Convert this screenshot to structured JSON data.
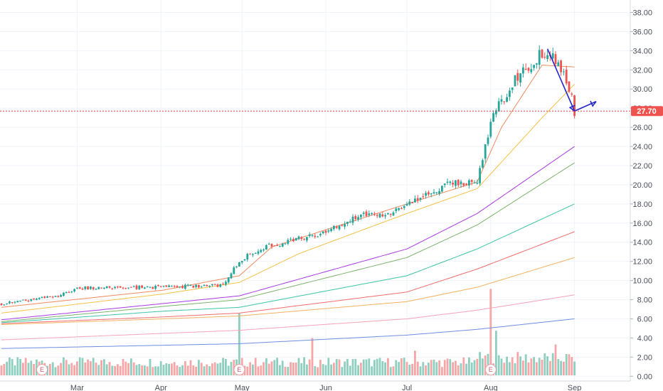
{
  "chart_data": {
    "type": "candlestick",
    "title": "",
    "xlabel": "",
    "ylabel": "",
    "ylim": [
      -0.5,
      39.3
    ],
    "y_ticks": [
      "0.00",
      "2.00",
      "4.00",
      "6.00",
      "8.00",
      "10.00",
      "12.00",
      "14.00",
      "16.00",
      "18.00",
      "20.00",
      "22.00",
      "24.00",
      "26.00",
      "28.00",
      "30.00",
      "32.00",
      "34.00",
      "36.00",
      "38.00"
    ],
    "x_ticks": [
      {
        "label": "Mar",
        "day": 28
      },
      {
        "label": "Apr",
        "day": 59
      },
      {
        "label": "May",
        "day": 89
      },
      {
        "label": "Jun",
        "day": 120
      },
      {
        "label": "Jul",
        "day": 150
      },
      {
        "label": "Aug",
        "day": 181
      },
      {
        "label": "Sep",
        "day": 212
      }
    ],
    "last_price": {
      "value": 27.7,
      "label": "27.70"
    },
    "candle_anchors": [
      [
        0,
        7.6
      ],
      [
        20,
        8.3
      ],
      [
        28,
        9.2
      ],
      [
        59,
        9.3
      ],
      [
        82,
        9.5
      ],
      [
        88,
        12.0
      ],
      [
        95,
        13.3
      ],
      [
        120,
        15.0
      ],
      [
        136,
        17.2
      ],
      [
        142,
        16.6
      ],
      [
        150,
        18.1
      ],
      [
        165,
        20.0
      ],
      [
        176,
        20.5
      ],
      [
        182,
        27.5
      ],
      [
        190,
        31.0
      ],
      [
        200,
        33.8
      ],
      [
        206,
        33.0
      ],
      [
        210,
        30.0
      ],
      [
        212,
        27.7
      ]
    ],
    "moving_averages": [
      {
        "color": "#f08a5d",
        "points": [
          [
            0,
            7.2
          ],
          [
            60,
            9.0
          ],
          [
            88,
            10.5
          ],
          [
            100,
            13.5
          ],
          [
            150,
            18.0
          ],
          [
            176,
            20.3
          ],
          [
            185,
            26.0
          ],
          [
            200,
            32.5
          ],
          [
            212,
            32.3
          ]
        ]
      },
      {
        "color": "#f5c146",
        "points": [
          [
            0,
            6.6
          ],
          [
            60,
            8.6
          ],
          [
            88,
            9.8
          ],
          [
            110,
            12.8
          ],
          [
            150,
            17.0
          ],
          [
            176,
            19.6
          ],
          [
            200,
            27.0
          ],
          [
            212,
            30.5
          ]
        ]
      },
      {
        "color": "#a73ae0",
        "points": [
          [
            0,
            5.9
          ],
          [
            60,
            7.6
          ],
          [
            88,
            8.4
          ],
          [
            150,
            13.3
          ],
          [
            176,
            17.0
          ],
          [
            212,
            24.0
          ]
        ]
      },
      {
        "color": "#7ab36b",
        "points": [
          [
            0,
            5.7
          ],
          [
            60,
            7.3
          ],
          [
            88,
            8.0
          ],
          [
            150,
            12.4
          ],
          [
            176,
            15.8
          ],
          [
            212,
            22.3
          ]
        ]
      },
      {
        "color": "#3cc4a5",
        "points": [
          [
            0,
            5.6
          ],
          [
            60,
            6.8
          ],
          [
            88,
            7.2
          ],
          [
            150,
            10.5
          ],
          [
            176,
            13.3
          ],
          [
            212,
            18.0
          ]
        ]
      },
      {
        "color": "#f06c6c",
        "points": [
          [
            0,
            5.5
          ],
          [
            60,
            6.2
          ],
          [
            88,
            6.6
          ],
          [
            150,
            8.8
          ],
          [
            176,
            11.2
          ],
          [
            212,
            15.1
          ]
        ]
      },
      {
        "color": "#f3b15f",
        "points": [
          [
            0,
            5.4
          ],
          [
            60,
            6.0
          ],
          [
            88,
            6.3
          ],
          [
            150,
            7.8
          ],
          [
            176,
            9.3
          ],
          [
            212,
            12.4
          ]
        ]
      },
      {
        "color": "#f4a3b8",
        "points": [
          [
            0,
            3.8
          ],
          [
            88,
            4.8
          ],
          [
            150,
            6.0
          ],
          [
            176,
            6.9
          ],
          [
            212,
            8.5
          ]
        ]
      },
      {
        "color": "#6d8ee0",
        "points": [
          [
            0,
            2.9
          ],
          [
            88,
            3.4
          ],
          [
            150,
            4.3
          ],
          [
            176,
            4.9
          ],
          [
            212,
            6.0
          ]
        ]
      }
    ],
    "volume_spikes": [
      [
        88,
        6.8
      ],
      [
        115,
        4.1
      ],
      [
        181,
        9.5
      ],
      [
        183,
        4.9
      ],
      [
        205,
        3.4
      ],
      [
        153,
        2.7
      ]
    ],
    "earnings_markers": [
      {
        "day": 15,
        "label": "E"
      },
      {
        "day": 88,
        "label": "E"
      },
      {
        "day": 181,
        "label": "E"
      }
    ],
    "annotation_arrows": {
      "color": "#2424c8",
      "segments": [
        [
          [
            202,
            34.2
          ],
          [
            212,
            27.7
          ]
        ],
        [
          [
            212,
            27.7
          ],
          [
            220,
            28.7
          ]
        ]
      ]
    }
  }
}
